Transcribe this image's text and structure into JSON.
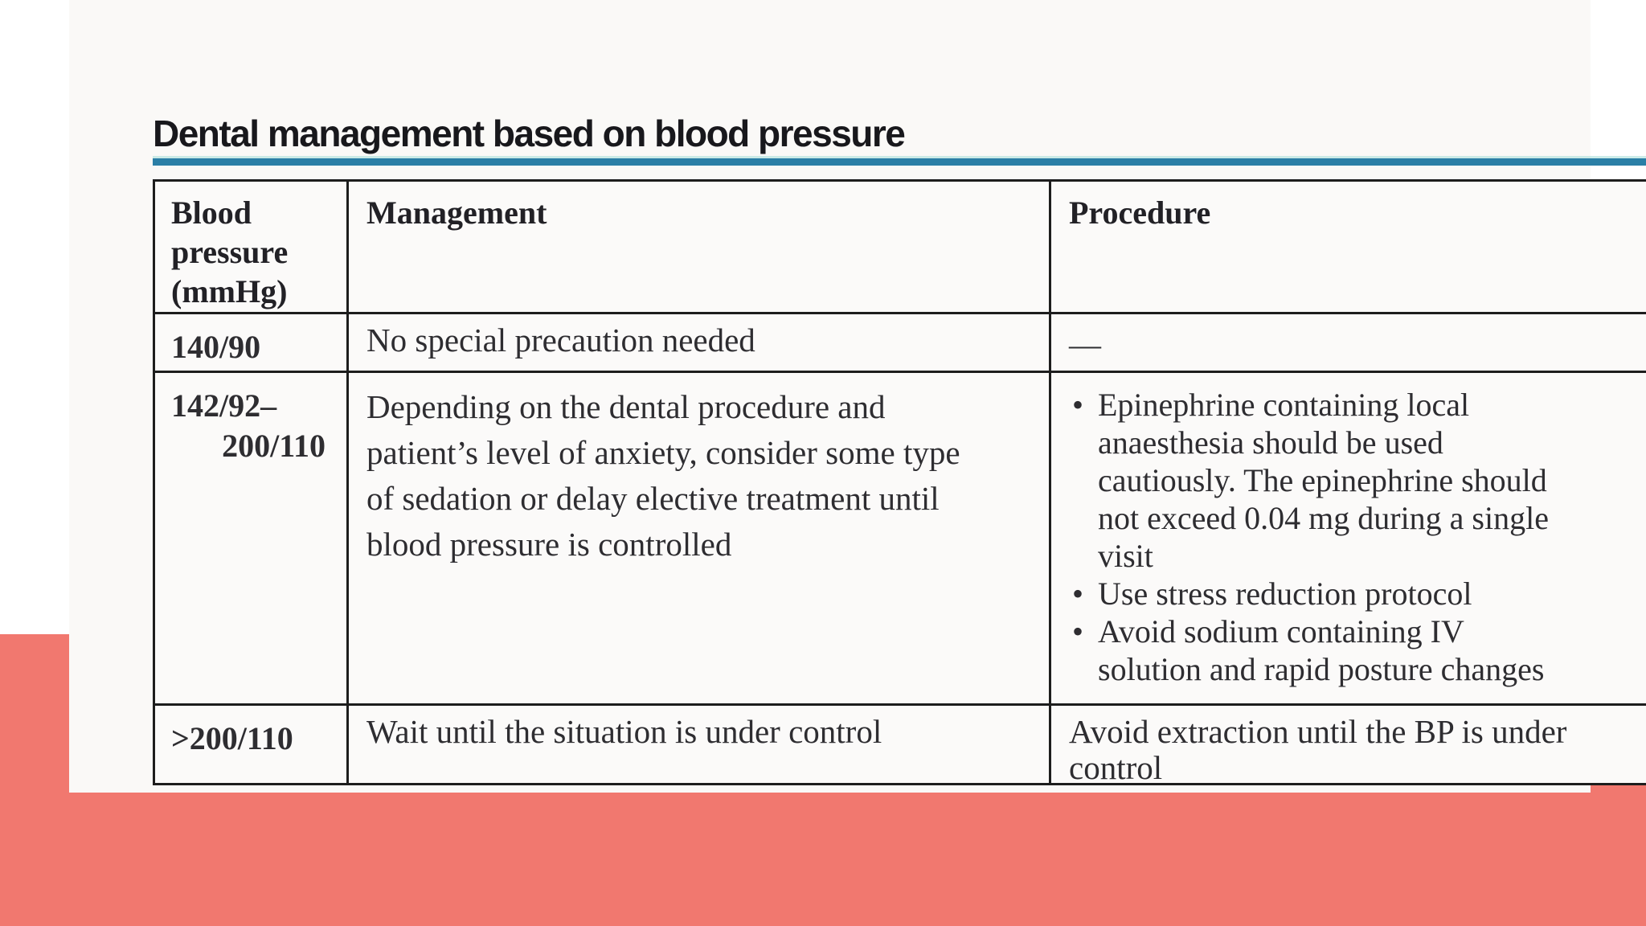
{
  "title": "Dental management based on blood pressure",
  "colors": {
    "background_band": "#f1786f",
    "title_rule": "#2b7fa6",
    "table_border": "#1d1d1d",
    "page_background": "#faf9f7",
    "text": "#2e2d31"
  },
  "table": {
    "headers": {
      "bp": "Blood pressure (mmHg)",
      "management": "Management",
      "procedure": "Procedure"
    },
    "rows": [
      {
        "bp": "140/90",
        "management": "No special precaution needed",
        "procedure": "—"
      },
      {
        "bp_line1": "142/92–",
        "bp_line2": "200/110",
        "management_lines": [
          "Depending on the dental procedure and",
          "patient’s level of anxiety, consider some type",
          "of sedation or delay elective treatment until",
          "blood pressure is controlled"
        ],
        "bullets": [
          {
            "lines": [
              "Epinephrine containing local",
              "anaesthesia should be used",
              "cautiously. The epinephrine should",
              "not exceed 0.04 mg during a single",
              "visit"
            ]
          },
          {
            "lines": [
              "Use stress reduction protocol"
            ]
          },
          {
            "lines": [
              "Avoid sodium containing IV",
              "solution and rapid posture changes"
            ]
          }
        ]
      },
      {
        "bp": ">200/110",
        "management": "Wait until the situation is under control",
        "procedure_lines": [
          "Avoid extraction until the BP is under",
          "control"
        ]
      }
    ]
  }
}
